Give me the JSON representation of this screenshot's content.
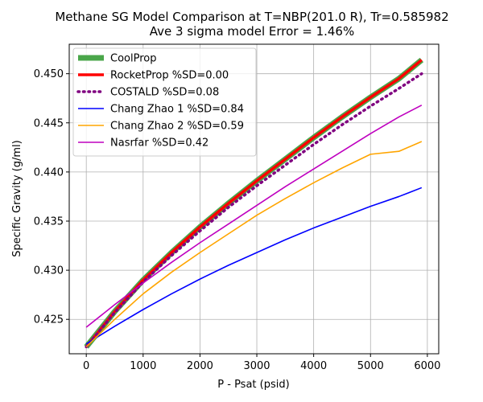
{
  "chart_data": {
    "type": "line",
    "title": "Methane SG Model Comparison at T=NBP(201.0 R), Tr=0.585982",
    "subtitle": "Ave 3 sigma model Error = 1.46%",
    "xlabel": "P - Psat (psid)",
    "ylabel": "Specific Gravity (g/ml)",
    "xlim": [
      -300,
      6200
    ],
    "ylim": [
      0.4215,
      0.453
    ],
    "xticks": [
      0,
      1000,
      2000,
      3000,
      4000,
      5000,
      6000
    ],
    "xtick_labels": [
      "0",
      "1000",
      "2000",
      "3000",
      "4000",
      "5000",
      "6000"
    ],
    "yticks": [
      0.425,
      0.43,
      0.435,
      0.44,
      0.445,
      0.45
    ],
    "ytick_labels": [
      "0.425",
      "0.430",
      "0.435",
      "0.440",
      "0.445",
      "0.450"
    ],
    "grid": true,
    "legend_position": "top-left",
    "x": [
      0,
      500,
      1000,
      1500,
      2000,
      2500,
      3000,
      3500,
      4000,
      4500,
      5000,
      5500,
      5900
    ],
    "series": [
      {
        "name": "CoolProp",
        "color": "#4aa64a",
        "style": "solid-thick",
        "values": [
          0.4222,
          0.4258,
          0.429,
          0.4318,
          0.4344,
          0.4368,
          0.4391,
          0.4413,
          0.4435,
          0.4456,
          0.4476,
          0.4495,
          0.4514
        ]
      },
      {
        "name": "RocketProp %SD=0.00",
        "color": "#ff0000",
        "style": "solid-medium",
        "values": [
          0.4222,
          0.4258,
          0.429,
          0.4318,
          0.4344,
          0.4368,
          0.4391,
          0.4413,
          0.4435,
          0.4456,
          0.4476,
          0.4495,
          0.4514
        ]
      },
      {
        "name": "COSTALD %SD=0.08",
        "color": "#800080",
        "style": "dotted",
        "values": [
          0.4222,
          0.4257,
          0.4288,
          0.4315,
          0.434,
          0.4364,
          0.4386,
          0.4407,
          0.4428,
          0.4448,
          0.4467,
          0.4485,
          0.45
        ]
      },
      {
        "name": "Chang Zhao 1 %SD=0.84",
        "color": "#0000ff",
        "style": "solid",
        "values": [
          0.4225,
          0.4243,
          0.426,
          0.4276,
          0.4291,
          0.4305,
          0.4318,
          0.4331,
          0.4343,
          0.4354,
          0.4365,
          0.4375,
          0.4384
        ]
      },
      {
        "name": "Chang Zhao 2 %SD=0.59",
        "color": "#ffa500",
        "style": "solid",
        "values": [
          0.4222,
          0.425,
          0.4276,
          0.4298,
          0.4318,
          0.4337,
          0.4356,
          0.4373,
          0.4389,
          0.4404,
          0.4418,
          0.4421,
          0.4431
        ]
      },
      {
        "name": "Nasrfar %SD=0.42",
        "color": "#bf00bf",
        "style": "solid",
        "values": [
          0.4242,
          0.4265,
          0.4287,
          0.4308,
          0.4328,
          0.4347,
          0.4366,
          0.4385,
          0.4403,
          0.4421,
          0.4439,
          0.4456,
          0.4468
        ]
      }
    ]
  }
}
